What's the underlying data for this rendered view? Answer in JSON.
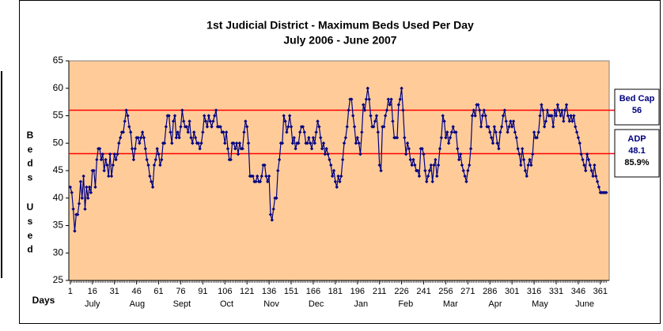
{
  "chart_data": {
    "type": "line",
    "title": "1st Judicial District - Maximum Beds Used Per Day",
    "subtitle": "July 2006 - June 2007",
    "y_label": "Beds Used",
    "x_label": "Days",
    "months": [
      "July",
      "Aug",
      "Sept",
      "Oct",
      "Nov",
      "Dec",
      "Jan",
      "Feb",
      "Mar",
      "Apr",
      "May",
      "June"
    ],
    "xlim": [
      0,
      367
    ],
    "ylim": [
      25,
      65
    ],
    "xticks": [
      1,
      16,
      31,
      46,
      61,
      76,
      91,
      106,
      121,
      136,
      151,
      166,
      181,
      196,
      211,
      226,
      241,
      256,
      271,
      286,
      301,
      316,
      331,
      346,
      361
    ],
    "yticks": [
      25,
      30,
      35,
      40,
      45,
      50,
      55,
      60,
      65
    ],
    "plot_color": "#FFCC99",
    "line_color": "#000080",
    "ref_color": "#FF0000",
    "reference_lines": [
      {
        "label": "Bed Cap",
        "value": 56
      },
      {
        "label": "ADP",
        "value": 48.1,
        "percent": "85.9%"
      }
    ],
    "x": [
      1,
      2,
      3,
      4,
      5,
      6,
      7,
      8,
      9,
      10,
      11,
      12,
      13,
      14,
      15,
      16,
      17,
      18,
      19,
      20,
      21,
      22,
      23,
      24,
      25,
      26,
      27,
      28,
      29,
      30,
      31,
      32,
      33,
      34,
      35,
      36,
      37,
      38,
      39,
      40,
      41,
      42,
      43,
      44,
      45,
      46,
      47,
      48,
      49,
      50,
      51,
      52,
      53,
      54,
      55,
      56,
      57,
      58,
      59,
      60,
      61,
      62,
      63,
      64,
      65,
      66,
      67,
      68,
      69,
      70,
      71,
      72,
      73,
      74,
      75,
      76,
      77,
      78,
      79,
      80,
      81,
      82,
      83,
      84,
      85,
      86,
      87,
      88,
      89,
      90,
      91,
      92,
      93,
      94,
      95,
      96,
      97,
      98,
      99,
      100,
      101,
      102,
      103,
      104,
      105,
      106,
      107,
      108,
      109,
      110,
      111,
      112,
      113,
      114,
      115,
      116,
      117,
      118,
      119,
      120,
      121,
      122,
      123,
      124,
      125,
      126,
      127,
      128,
      129,
      130,
      131,
      132,
      133,
      134,
      135,
      136,
      137,
      138,
      139,
      140,
      141,
      142,
      143,
      144,
      145,
      146,
      147,
      148,
      149,
      150,
      151,
      152,
      153,
      154,
      155,
      156,
      157,
      158,
      159,
      160,
      161,
      162,
      163,
      164,
      165,
      166,
      167,
      168,
      169,
      170,
      171,
      172,
      173,
      174,
      175,
      176,
      177,
      178,
      179,
      180,
      181,
      182,
      183,
      184,
      185,
      186,
      187,
      188,
      189,
      190,
      191,
      192,
      193,
      194,
      195,
      196,
      197,
      198,
      199,
      200,
      201,
      202,
      203,
      204,
      205,
      206,
      207,
      208,
      209,
      210,
      211,
      212,
      213,
      214,
      215,
      216,
      217,
      218,
      219,
      220,
      221,
      222,
      223,
      224,
      225,
      226,
      227,
      228,
      229,
      230,
      231,
      232,
      233,
      234,
      235,
      236,
      237,
      238,
      239,
      240,
      241,
      242,
      243,
      244,
      245,
      246,
      247,
      248,
      249,
      250,
      251,
      252,
      253,
      254,
      255,
      256,
      257,
      258,
      259,
      260,
      261,
      262,
      263,
      264,
      265,
      266,
      267,
      268,
      269,
      270,
      271,
      272,
      273,
      274,
      275,
      276,
      277,
      278,
      279,
      280,
      281,
      282,
      283,
      284,
      285,
      286,
      287,
      288,
      289,
      290,
      291,
      292,
      293,
      294,
      295,
      296,
      297,
      298,
      299,
      300,
      301,
      302,
      303,
      304,
      305,
      306,
      307,
      308,
      309,
      310,
      311,
      312,
      313,
      314,
      315,
      316,
      317,
      318,
      319,
      320,
      321,
      322,
      323,
      324,
      325,
      326,
      327,
      328,
      329,
      330,
      331,
      332,
      333,
      334,
      335,
      336,
      337,
      338,
      339,
      340,
      341,
      342,
      343,
      344,
      345,
      346,
      347,
      348,
      349,
      350,
      351,
      352,
      353,
      354,
      355,
      356,
      357,
      358,
      359,
      360,
      361,
      362,
      363,
      364,
      365
    ],
    "values": [
      42,
      41,
      38,
      34,
      37,
      37,
      39,
      43,
      40,
      44,
      38,
      42,
      40,
      42,
      41,
      45,
      45,
      42,
      47,
      49,
      49,
      47,
      48,
      45,
      47,
      46,
      44,
      48,
      44,
      46,
      48,
      47,
      48,
      50,
      51,
      52,
      52,
      54,
      56,
      55,
      53,
      52,
      49,
      47,
      49,
      51,
      51,
      50,
      51,
      52,
      51,
      49,
      47,
      46,
      44,
      43,
      42,
      46,
      47,
      49,
      48,
      46,
      47,
      50,
      50,
      53,
      55,
      55,
      52,
      50,
      54,
      55,
      51,
      52,
      51,
      53,
      56,
      54,
      53,
      53,
      52,
      54,
      51,
      50,
      52,
      51,
      50,
      50,
      49,
      50,
      52,
      55,
      54,
      53,
      55,
      54,
      53,
      54,
      55,
      56,
      53,
      53,
      53,
      52,
      52,
      50,
      52,
      49,
      47,
      47,
      50,
      50,
      49,
      50,
      48,
      50,
      49,
      49,
      52,
      54,
      53,
      50,
      44,
      44,
      44,
      43,
      43,
      44,
      43,
      43,
      44,
      46,
      46,
      44,
      43,
      44,
      37,
      36,
      38,
      40,
      40,
      45,
      47,
      50,
      50,
      55,
      54,
      52,
      53,
      55,
      53,
      50,
      51,
      49,
      50,
      50,
      52,
      53,
      53,
      52,
      50,
      50,
      51,
      50,
      49,
      51,
      50,
      52,
      54,
      53,
      51,
      49,
      50,
      48,
      49,
      48,
      47,
      46,
      44,
      45,
      43,
      42,
      44,
      43,
      44,
      47,
      50,
      51,
      53,
      56,
      58,
      58,
      55,
      53,
      50,
      51,
      50,
      48,
      52,
      57,
      56,
      58,
      60,
      58,
      55,
      53,
      53,
      54,
      55,
      52,
      46,
      45,
      53,
      53,
      55,
      56,
      58,
      57,
      58,
      54,
      51,
      51,
      51,
      57,
      58,
      60,
      56,
      51,
      48,
      50,
      49,
      47,
      46,
      47,
      46,
      45,
      45,
      44,
      49,
      49,
      48,
      45,
      43,
      44,
      45,
      46,
      43,
      46,
      47,
      44,
      46,
      49,
      51,
      55,
      54,
      51,
      52,
      50,
      51,
      52,
      53,
      52,
      52,
      49,
      47,
      48,
      46,
      45,
      44,
      43,
      45,
      46,
      49,
      55,
      56,
      55,
      57,
      57,
      56,
      53,
      55,
      56,
      55,
      53,
      53,
      52,
      51,
      50,
      53,
      52,
      50,
      49,
      52,
      53,
      55,
      56,
      54,
      52,
      53,
      54,
      53,
      54,
      52,
      51,
      49,
      48,
      46,
      49,
      47,
      45,
      44,
      46,
      47,
      46,
      48,
      52,
      51,
      51,
      52,
      55,
      57,
      56,
      53,
      54,
      56,
      55,
      55,
      55,
      53,
      56,
      55,
      57,
      56,
      55,
      56,
      54,
      56,
      57,
      55,
      54,
      55,
      54,
      55,
      53,
      52,
      51,
      50,
      48,
      47,
      46,
      45,
      48,
      47,
      46,
      45,
      44,
      46,
      44,
      43,
      42,
      41,
      41,
      41,
      41,
      41
    ]
  }
}
